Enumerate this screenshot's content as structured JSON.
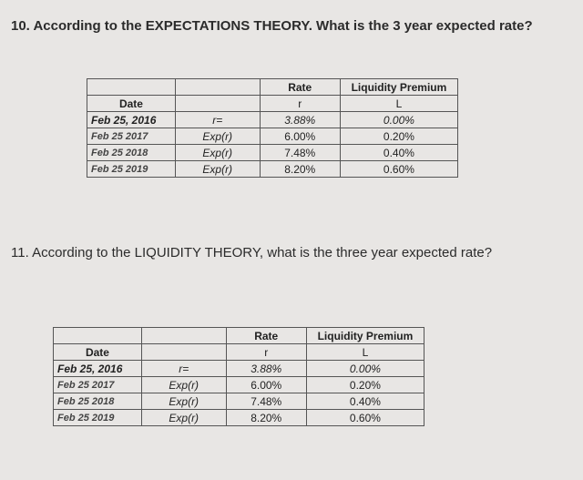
{
  "questions": {
    "q10": "10. According to the EXPECTATIONS THEORY. What is the 3 year expected rate?",
    "q11": "11. According to the LIQUIDITY THEORY, what is the three year expected rate?"
  },
  "table": {
    "headers": {
      "rate": "Rate",
      "liquidity_premium": "Liquidity Premium",
      "date": "Date",
      "r_symbol": "r",
      "l_symbol": "L"
    },
    "rows": [
      {
        "date": "Feb 25, 2016",
        "r": "r=",
        "rate": "3.88%",
        "premium": "0.00%"
      },
      {
        "date": "Feb 25 2017",
        "r": "Exp(r)",
        "rate": "6.00%",
        "premium": "0.20%"
      },
      {
        "date": "Feb 25 2018",
        "r": "Exp(r)",
        "rate": "7.48%",
        "premium": "0.40%"
      },
      {
        "date": "Feb 25 2019",
        "r": "Exp(r)",
        "rate": "8.20%",
        "premium": "0.60%"
      }
    ]
  }
}
